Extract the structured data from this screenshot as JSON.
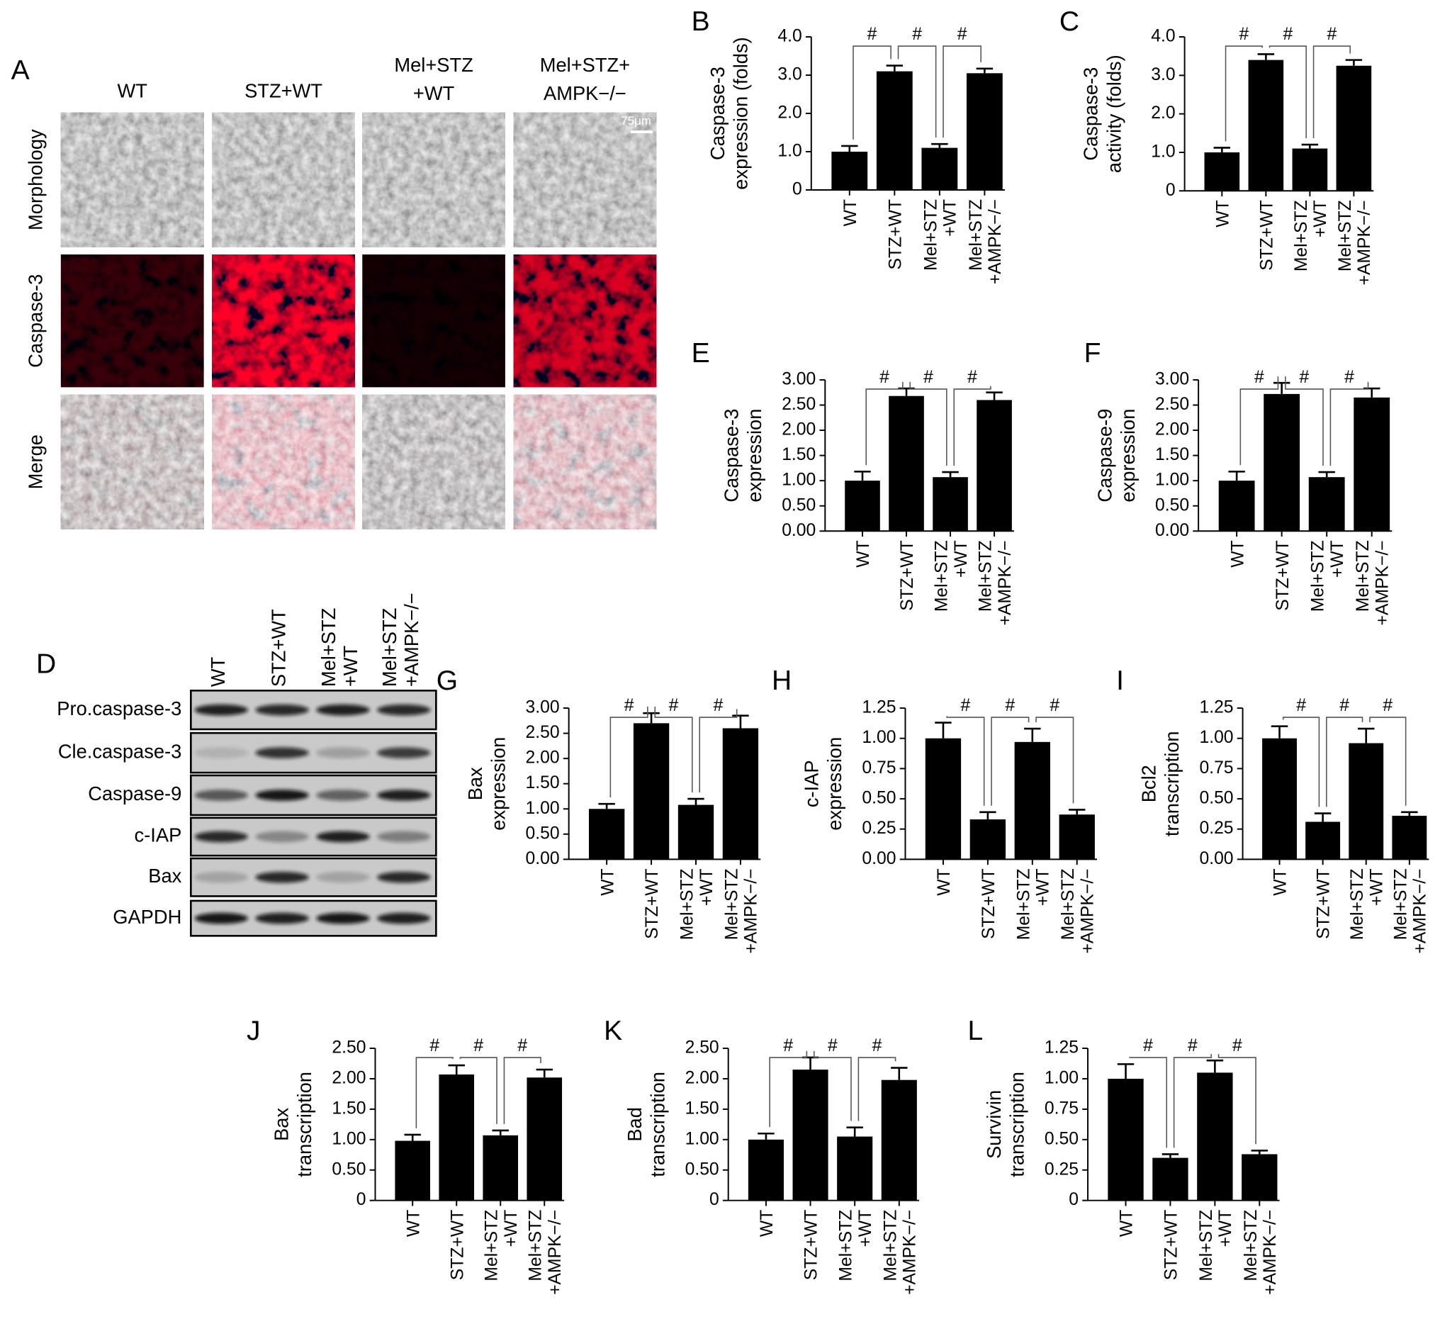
{
  "panel_a": {
    "letter": "A",
    "columns": [
      [
        "WT"
      ],
      [
        "STZ+WT"
      ],
      [
        "Mel+STZ",
        "+WT"
      ],
      [
        "Mel+STZ+",
        "AMPK−/−"
      ]
    ],
    "rows": [
      "Morphology",
      "Caspase-3",
      "Merge"
    ],
    "scale_bar": "75μm"
  },
  "panel_d": {
    "letter": "D",
    "lanes": [
      [
        "WT"
      ],
      [
        "STZ+WT"
      ],
      [
        "Mel+STZ",
        "+WT"
      ],
      [
        "Mel+STZ",
        "+AMPK−/−"
      ]
    ],
    "proteins": [
      "Pro.caspase-3",
      "Cle.caspase-3",
      "Caspase-9",
      "c-IAP",
      "Bax",
      "GAPDH"
    ]
  },
  "chart_data": [
    {
      "type": "bar",
      "panel": "B",
      "y_label": [
        "Caspase-3",
        "expression (folds)"
      ],
      "categories": [
        [
          "WT"
        ],
        [
          "STZ+WT"
        ],
        [
          "Mel+STZ",
          "+WT"
        ],
        [
          "Mel+STZ",
          "+AMPK−/−"
        ]
      ],
      "values": [
        1.0,
        3.1,
        1.1,
        3.05
      ],
      "errors": [
        0.15,
        0.15,
        0.1,
        0.12
      ],
      "color": "#000000",
      "ylim": [
        0,
        4
      ],
      "yticks": [
        0,
        {
          "value": 1,
          "label": "1.0"
        },
        {
          "value": 2,
          "label": "2.0"
        },
        {
          "value": 3,
          "label": "3.0"
        },
        {
          "value": 4,
          "label": "4.0"
        }
      ],
      "annotations": [
        "#",
        "#",
        "#"
      ]
    },
    {
      "type": "bar",
      "panel": "C",
      "y_label": [
        "Caspase-3",
        "activity (folds)"
      ],
      "categories": [
        [
          "WT"
        ],
        [
          "STZ+WT"
        ],
        [
          "Mel+STZ",
          "+WT"
        ],
        [
          "Mel+STZ",
          "+AMPK−/−"
        ]
      ],
      "values": [
        1.0,
        3.4,
        1.1,
        3.25
      ],
      "errors": [
        0.12,
        0.15,
        0.1,
        0.15
      ],
      "color": "#000000",
      "ylim": [
        0,
        4
      ],
      "yticks": [
        0,
        {
          "value": 1,
          "label": "1.0"
        },
        {
          "value": 2,
          "label": "2.0"
        },
        {
          "value": 3,
          "label": "3.0"
        },
        {
          "value": 4,
          "label": "4.0"
        }
      ],
      "annotations": [
        "#",
        "#",
        "#"
      ]
    },
    {
      "type": "bar",
      "panel": "E",
      "y_label": [
        "Caspase-3",
        "expression"
      ],
      "categories": [
        [
          "WT"
        ],
        [
          "STZ+WT"
        ],
        [
          "Mel+STZ",
          "+WT"
        ],
        [
          "Mel+STZ",
          "+AMPK−/−"
        ]
      ],
      "values": [
        1.0,
        2.68,
        1.07,
        2.6
      ],
      "errors": [
        0.18,
        0.15,
        0.1,
        0.15
      ],
      "color": "#000000",
      "ylim": [
        0,
        3
      ],
      "yticks": [
        {
          "value": 0,
          "label": "0.00"
        },
        {
          "value": 0.5,
          "label": "0.50"
        },
        {
          "value": 1,
          "label": "1.00"
        },
        {
          "value": 1.5,
          "label": "1.50"
        },
        {
          "value": 2,
          "label": "2.00"
        },
        {
          "value": 2.5,
          "label": "2.50"
        },
        {
          "value": 3,
          "label": "3.00"
        }
      ],
      "annotations": [
        "#",
        "#",
        "#"
      ]
    },
    {
      "type": "bar",
      "panel": "F",
      "y_label": [
        "Caspase-9",
        "expression"
      ],
      "categories": [
        [
          "WT"
        ],
        [
          "STZ+WT"
        ],
        [
          "Mel+STZ",
          "+WT"
        ],
        [
          "Mel+STZ",
          "+AMPK−/−"
        ]
      ],
      "values": [
        1.0,
        2.72,
        1.07,
        2.65
      ],
      "errors": [
        0.18,
        0.22,
        0.1,
        0.18
      ],
      "color": "#000000",
      "ylim": [
        0,
        3
      ],
      "yticks": [
        {
          "value": 0,
          "label": "0.00"
        },
        {
          "value": 0.5,
          "label": "0.50"
        },
        {
          "value": 1,
          "label": "1.00"
        },
        {
          "value": 1.5,
          "label": "1.50"
        },
        {
          "value": 2,
          "label": "2.00"
        },
        {
          "value": 2.5,
          "label": "2.50"
        },
        {
          "value": 3,
          "label": "3.00"
        }
      ],
      "annotations": [
        "#",
        "#",
        "#"
      ]
    },
    {
      "type": "bar",
      "panel": "G",
      "y_label": [
        "Bax",
        "expression"
      ],
      "categories": [
        [
          "WT"
        ],
        [
          "STZ+WT"
        ],
        [
          "Mel+STZ",
          "+WT"
        ],
        [
          "Mel+STZ",
          "+AMPK−/−"
        ]
      ],
      "values": [
        1.0,
        2.7,
        1.08,
        2.6
      ],
      "errors": [
        0.1,
        0.2,
        0.12,
        0.25
      ],
      "color": "#000000",
      "ylim": [
        0,
        3
      ],
      "yticks": [
        {
          "value": 0,
          "label": "0.00"
        },
        {
          "value": 0.5,
          "label": "0.50"
        },
        {
          "value": 1,
          "label": "1.00"
        },
        {
          "value": 1.5,
          "label": "1.50"
        },
        {
          "value": 2,
          "label": "2.00"
        },
        {
          "value": 2.5,
          "label": "2.50"
        },
        {
          "value": 3,
          "label": "3.00"
        }
      ],
      "annotations": [
        "#",
        "#",
        "#"
      ]
    },
    {
      "type": "bar",
      "panel": "H",
      "y_label": [
        "c-IAP",
        "expression"
      ],
      "categories": [
        [
          "WT"
        ],
        [
          "STZ+WT"
        ],
        [
          "Mel+STZ",
          "+WT"
        ],
        [
          "Mel+STZ",
          "+AMPK−/−"
        ]
      ],
      "values": [
        1.0,
        0.33,
        0.97,
        0.37
      ],
      "errors": [
        0.13,
        0.06,
        0.11,
        0.04
      ],
      "color": "#000000",
      "ylim": [
        0,
        1.25
      ],
      "yticks": [
        {
          "value": 0,
          "label": "0.00"
        },
        0.25,
        {
          "value": 0.5,
          "label": "0.50"
        },
        0.75,
        {
          "value": 1,
          "label": "1.00"
        },
        1.25
      ],
      "annotations": [
        "#",
        "#",
        "#"
      ]
    },
    {
      "type": "bar",
      "panel": "I",
      "y_label": [
        "Bcl2",
        "transcription"
      ],
      "categories": [
        [
          "WT"
        ],
        [
          "STZ+WT"
        ],
        [
          "Mel+STZ",
          "+WT"
        ],
        [
          "Mel+STZ",
          "+AMPK−/−"
        ]
      ],
      "values": [
        1.0,
        0.31,
        0.96,
        0.36
      ],
      "errors": [
        0.1,
        0.07,
        0.12,
        0.03
      ],
      "color": "#000000",
      "ylim": [
        0,
        1.25
      ],
      "yticks": [
        {
          "value": 0,
          "label": "0.00"
        },
        0.25,
        {
          "value": 0.5,
          "label": "0.50"
        },
        0.75,
        {
          "value": 1,
          "label": "1.00"
        },
        1.25
      ],
      "annotations": [
        "#",
        "#",
        "#"
      ]
    },
    {
      "type": "bar",
      "panel": "J",
      "y_label": [
        "Bax",
        "transcription"
      ],
      "categories": [
        [
          "WT"
        ],
        [
          "STZ+WT"
        ],
        [
          "Mel+STZ",
          "+WT"
        ],
        [
          "Mel+STZ",
          "+AMPK−/−"
        ]
      ],
      "values": [
        0.98,
        2.07,
        1.07,
        2.02
      ],
      "errors": [
        0.1,
        0.15,
        0.08,
        0.13
      ],
      "color": "#000000",
      "ylim": [
        0,
        2.5
      ],
      "yticks": [
        0,
        {
          "value": 0.5,
          "label": "0.50"
        },
        {
          "value": 1,
          "label": "1.00"
        },
        {
          "value": 1.5,
          "label": "1.50"
        },
        {
          "value": 2,
          "label": "2.00"
        },
        {
          "value": 2.5,
          "label": "2.50"
        }
      ],
      "annotations": [
        "#",
        "#",
        "#"
      ]
    },
    {
      "type": "bar",
      "panel": "K",
      "y_label": [
        "Bad",
        "transcription"
      ],
      "categories": [
        [
          "WT"
        ],
        [
          "STZ+WT"
        ],
        [
          "Mel+STZ",
          "+WT"
        ],
        [
          "Mel+STZ",
          "+AMPK−/−"
        ]
      ],
      "values": [
        1.0,
        2.15,
        1.05,
        1.98
      ],
      "errors": [
        0.1,
        0.2,
        0.15,
        0.2
      ],
      "color": "#000000",
      "ylim": [
        0,
        2.5
      ],
      "yticks": [
        0,
        {
          "value": 0.5,
          "label": "0.50"
        },
        {
          "value": 1,
          "label": "1.00"
        },
        {
          "value": 1.5,
          "label": "1.50"
        },
        {
          "value": 2,
          "label": "2.00"
        },
        {
          "value": 2.5,
          "label": "2.50"
        }
      ],
      "annotations": [
        "#",
        "#",
        "#"
      ]
    },
    {
      "type": "bar",
      "panel": "L",
      "y_label": [
        "Survivin",
        "transcription"
      ],
      "categories": [
        [
          "WT"
        ],
        [
          "STZ+WT"
        ],
        [
          "Mel+STZ",
          "+WT"
        ],
        [
          "Mel+STZ",
          "+AMPK−/−"
        ]
      ],
      "values": [
        1.0,
        0.35,
        1.05,
        0.38
      ],
      "errors": [
        0.12,
        0.03,
        0.1,
        0.03
      ],
      "color": "#000000",
      "ylim": [
        0,
        1.25
      ],
      "yticks": [
        0,
        0.25,
        {
          "value": 0.5,
          "label": "0.50"
        },
        0.75,
        {
          "value": 1,
          "label": "1.00"
        },
        1.25
      ],
      "annotations": [
        "#",
        "#",
        "#"
      ]
    }
  ]
}
